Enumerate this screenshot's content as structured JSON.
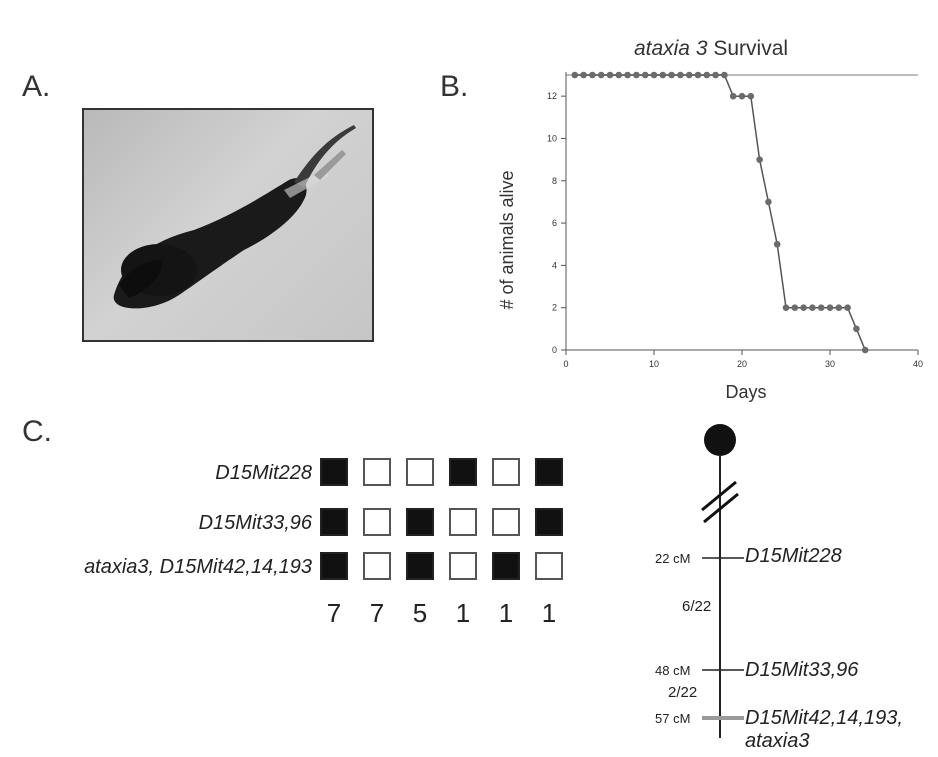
{
  "panels": {
    "a": {
      "label": "A."
    },
    "b": {
      "label": "B."
    },
    "c": {
      "label": "C."
    }
  },
  "chart_data": {
    "type": "line",
    "title_italic": "ataxia 3",
    "title_rest": " Survival",
    "xlabel": "Days",
    "ylabel": "# of animals alive",
    "xlim": [
      0,
      40
    ],
    "ylim": [
      0,
      13
    ],
    "xticks": [
      0,
      10,
      20,
      30,
      40
    ],
    "yticks": [
      0,
      2,
      4,
      6,
      8,
      10,
      12
    ],
    "grid": false,
    "reference_line": {
      "y": 13,
      "color": "#bdbdbd"
    },
    "series": [
      {
        "color": "#6b6b6b",
        "x": [
          1,
          2,
          3,
          4,
          5,
          6,
          7,
          8,
          9,
          10,
          11,
          12,
          13,
          14,
          15,
          16,
          17,
          18,
          19,
          20,
          21,
          22,
          23,
          24,
          25,
          26,
          27,
          28,
          29,
          30,
          31,
          32,
          33,
          34
        ],
        "y": [
          13,
          13,
          13,
          13,
          13,
          13,
          13,
          13,
          13,
          13,
          13,
          13,
          13,
          13,
          13,
          13,
          13,
          13,
          12,
          12,
          12,
          9,
          7,
          5,
          2,
          2,
          2,
          2,
          2,
          2,
          2,
          2,
          1,
          0
        ]
      }
    ]
  },
  "haplotype": {
    "rows": [
      {
        "marker": "D15Mit228",
        "cells": [
          1,
          0,
          0,
          1,
          0,
          1
        ]
      },
      {
        "marker": "D15Mit33,96",
        "cells": [
          1,
          0,
          1,
          0,
          0,
          1
        ]
      },
      {
        "marker": "ataxia3, D15Mit42,14,193",
        "cells": [
          1,
          0,
          1,
          0,
          1,
          0
        ]
      }
    ],
    "counts": [
      "7",
      "7",
      "5",
      "1",
      "1",
      "1"
    ]
  },
  "genetic_map": {
    "markers": [
      {
        "cm": "22 cM",
        "name": "D15Mit228"
      },
      {
        "cm": "48 cM",
        "name": "D15Mit33,96"
      },
      {
        "cm": "57 cM",
        "name": "D15Mit42,14,193,",
        "name2": "ataxia3"
      }
    ],
    "intervals": [
      "6/22",
      "2/22"
    ]
  }
}
